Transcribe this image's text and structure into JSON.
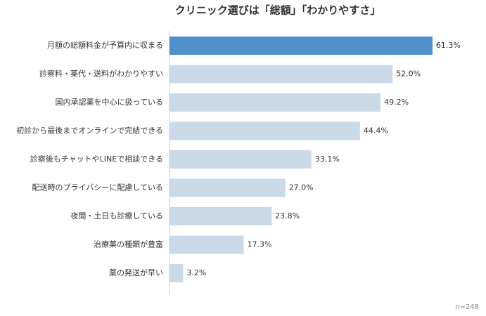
{
  "chart_data": {
    "type": "bar",
    "orientation": "horizontal",
    "title": "クリニック選びは「総額」「わかりやすさ」",
    "categories": [
      "月額の総額料金が予算内に収まる",
      "診察料・薬代・送料がわかりやすい",
      "国内承認薬を中心に扱っている",
      "初診から最後までオンラインで完結できる",
      "診察後もチャットやLINEで相談できる",
      "配送時のプライバシーに配慮している",
      "夜間・土日も診療している",
      "治療薬の種類が豊富",
      "薬の発送が早い"
    ],
    "values": [
      61.3,
      52.0,
      49.2,
      44.4,
      33.1,
      27.0,
      23.8,
      17.3,
      3.2
    ],
    "value_labels": [
      "61.3%",
      "52.0%",
      "49.2%",
      "44.4%",
      "33.1%",
      "27.0%",
      "23.8%",
      "17.3%",
      "3.2%"
    ],
    "colors": [
      "#4f8fca",
      "#c9d9e8",
      "#c9d9e8",
      "#c9d9e8",
      "#c9d9e8",
      "#c9d9e8",
      "#c9d9e8",
      "#c9d9e8",
      "#c9d9e8"
    ],
    "xlim": [
      0,
      70
    ],
    "note": "n=248"
  }
}
